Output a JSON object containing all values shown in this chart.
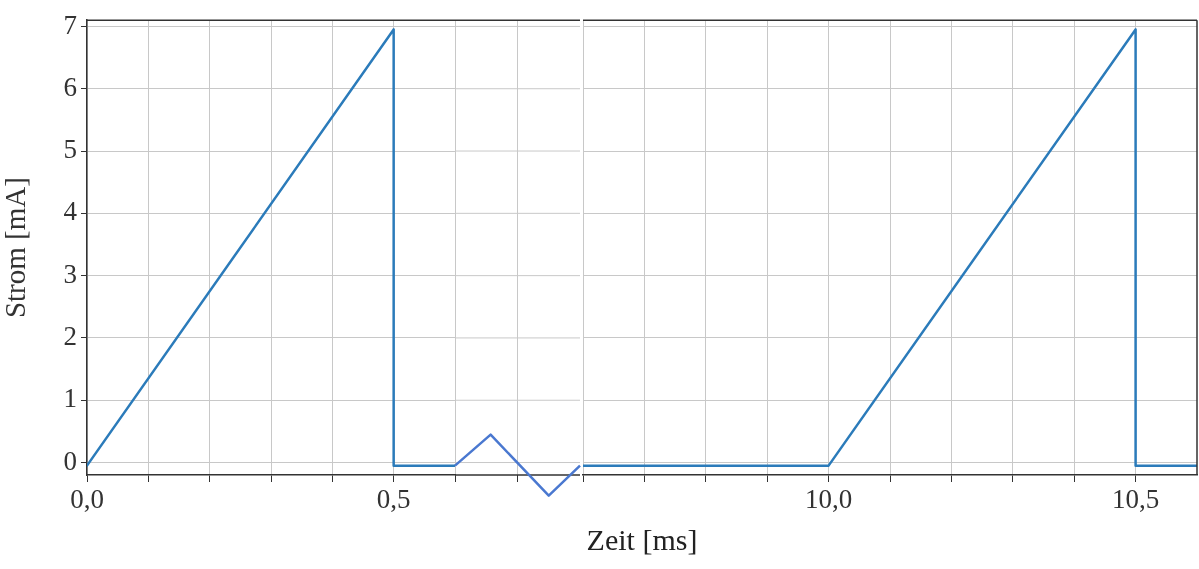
{
  "chart_data": [
    {
      "type": "line",
      "ylabel": "Strom [mA]",
      "xlabel": "Zeit [ms]",
      "xlim": [
        0,
        0.6
      ],
      "ylim": [
        -0.2,
        7.1
      ],
      "xticks": [
        {
          "value": 0,
          "label": "0,0"
        },
        {
          "value": 0.1,
          "label": null
        },
        {
          "value": 0.2,
          "label": null
        },
        {
          "value": 0.3,
          "label": null
        },
        {
          "value": 0.4,
          "label": null
        },
        {
          "value": 0.5,
          "label": "0,5"
        },
        {
          "value": 0.6,
          "label": null
        }
      ],
      "yticks": [
        0,
        1,
        2,
        3,
        4,
        5,
        6,
        7
      ],
      "grid": true,
      "legend": false,
      "marker": "none",
      "line_style": "solid",
      "series": [
        {
          "color": "#2b7bba",
          "x": [
            0,
            0.5,
            0.5,
            0.6
          ],
          "values": [
            -0.05,
            6.95,
            -0.05,
            -0.05
          ]
        }
      ]
    },
    {
      "type": "line",
      "xlim": [
        9.6,
        10.6
      ],
      "ylim": [
        -0.2,
        7.1
      ],
      "xticks": [
        {
          "value": 9.6,
          "label": null
        },
        {
          "value": 9.7,
          "label": null
        },
        {
          "value": 9.8,
          "label": null
        },
        {
          "value": 9.9,
          "label": null
        },
        {
          "value": 10.0,
          "label": "10,0"
        },
        {
          "value": 10.1,
          "label": null
        },
        {
          "value": 10.2,
          "label": null
        },
        {
          "value": 10.3,
          "label": null
        },
        {
          "value": 10.4,
          "label": null
        },
        {
          "value": 10.5,
          "label": "10,5"
        }
      ],
      "yticks": [
        0,
        1,
        2,
        3,
        4,
        5,
        6,
        7
      ],
      "tick_labels": "x",
      "grid": true,
      "legend": false,
      "marker": "none",
      "line_style": "solid",
      "series": [
        {
          "color": "#2b7bba",
          "x": [
            9.6,
            10.0,
            10.5,
            10.5,
            10.6
          ],
          "values": [
            -0.05,
            -0.05,
            6.95,
            -0.05,
            -0.05
          ]
        }
      ]
    }
  ]
}
